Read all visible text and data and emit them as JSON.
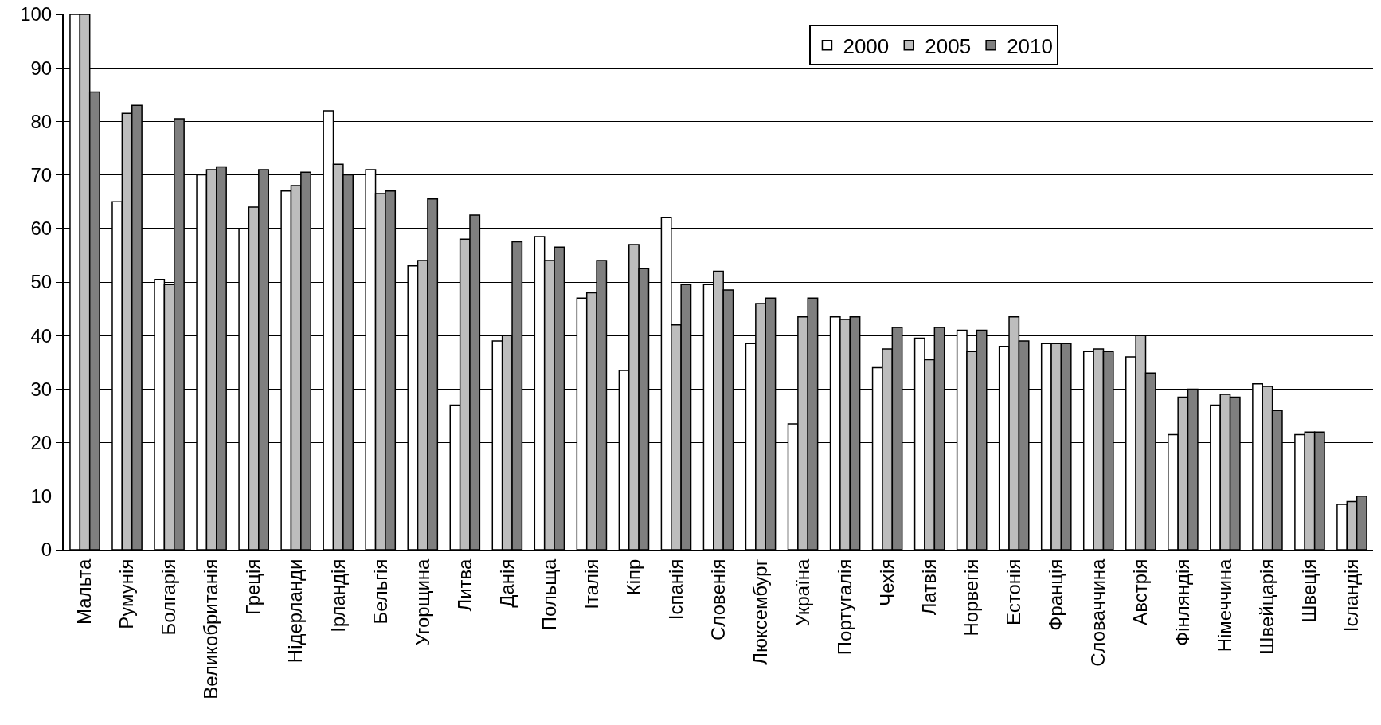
{
  "chart_data": {
    "type": "bar",
    "categories": [
      "Мальта",
      "Румунія",
      "Болгарія",
      "Великобританія",
      "Греція",
      "Нідерланди",
      "Ірландія",
      "Бельгія",
      "Угорщина",
      "Литва",
      "Данія",
      "Польща",
      "Італія",
      "Кіпр",
      "Іспанія",
      "Словенія",
      "Люксембург",
      "Україна",
      "Португалія",
      "Чехія",
      "Латвія",
      "Норвегія",
      "Естонія",
      "Франція",
      "Словаччина",
      "Австрія",
      "Фінляндія",
      "Німеччина",
      "Швейцарія",
      "Швеція",
      "Ісландія"
    ],
    "series": [
      {
        "name": "2000",
        "color": "#ffffff",
        "values": [
          100,
          65,
          50.5,
          70,
          60,
          67,
          82,
          71,
          53,
          27,
          39,
          58.5,
          47,
          33.5,
          62,
          49.5,
          38.5,
          23.5,
          43.5,
          34,
          39.5,
          41,
          38,
          38.5,
          37,
          36,
          21.5,
          27,
          31,
          21.5,
          8.5
        ]
      },
      {
        "name": "2005",
        "color": "#bdbdbd",
        "values": [
          100,
          81.5,
          49.5,
          71,
          64,
          68,
          72,
          66.5,
          54,
          58,
          40,
          54,
          48,
          57,
          42,
          52,
          46,
          43.5,
          43,
          37.5,
          35.5,
          37,
          43.5,
          38.5,
          37.5,
          40,
          28.5,
          29,
          30.5,
          22,
          9
        ]
      },
      {
        "name": "2010",
        "color": "#7f7f7f",
        "values": [
          85.5,
          83,
          80.5,
          71.5,
          71,
          70.5,
          70,
          67,
          65.5,
          62.5,
          57.5,
          56.5,
          54,
          52.5,
          49.5,
          48.5,
          47,
          47,
          43.5,
          41.5,
          41.5,
          41,
          39,
          38.5,
          37,
          33,
          30,
          28.5,
          26,
          22,
          10
        ]
      }
    ],
    "ylim": [
      0,
      100
    ],
    "yticks": [
      0,
      10,
      20,
      30,
      40,
      50,
      60,
      70,
      80,
      90,
      100
    ],
    "grid": "y",
    "legend": "top right"
  }
}
